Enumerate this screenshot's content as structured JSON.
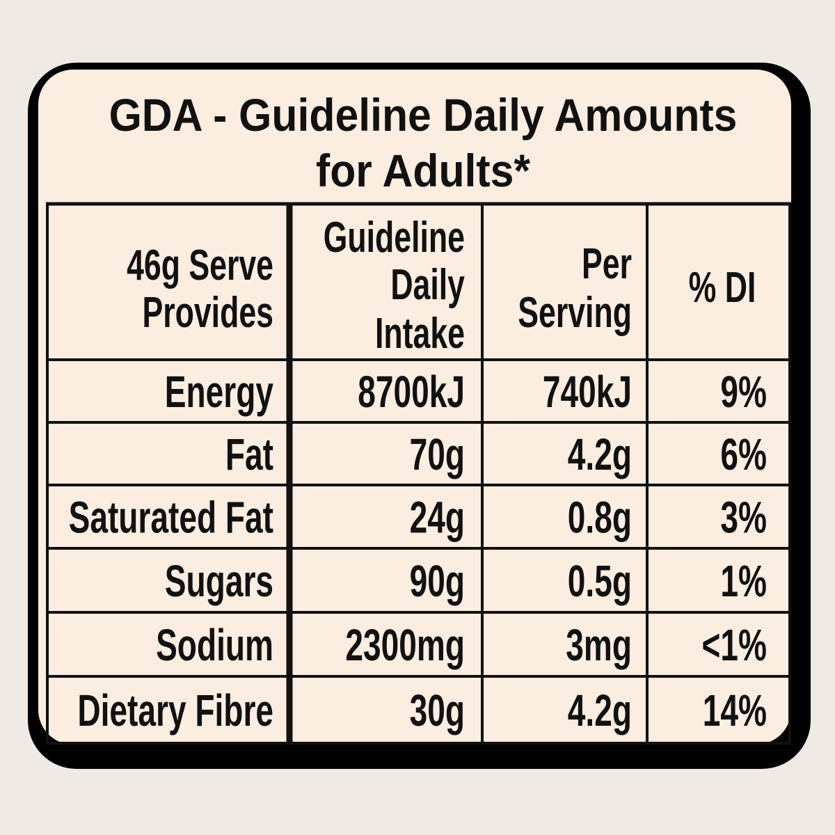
{
  "header": {
    "title_lines": [
      "GDA - Guideline Daily Amounts",
      "for Adults*"
    ]
  },
  "table": {
    "columns": [
      [
        "46g Serve",
        "Provides"
      ],
      [
        "Guideline",
        "Daily",
        "Intake"
      ],
      [
        "Per",
        "Serving"
      ],
      [
        "% DI"
      ]
    ],
    "rows": [
      [
        "Energy",
        "8700kJ",
        "740kJ",
        "9%"
      ],
      [
        "Fat",
        "70g",
        "4.2g",
        "6%"
      ],
      [
        "Saturated Fat",
        "24g",
        "0.8g",
        "3%"
      ],
      [
        "Sugars",
        "90g",
        "0.5g",
        "1%"
      ],
      [
        "Sodium",
        "2300mg",
        "3mg",
        "<1%"
      ],
      [
        "Dietary Fibre",
        "30g",
        "4.2g",
        "14%"
      ]
    ]
  }
}
